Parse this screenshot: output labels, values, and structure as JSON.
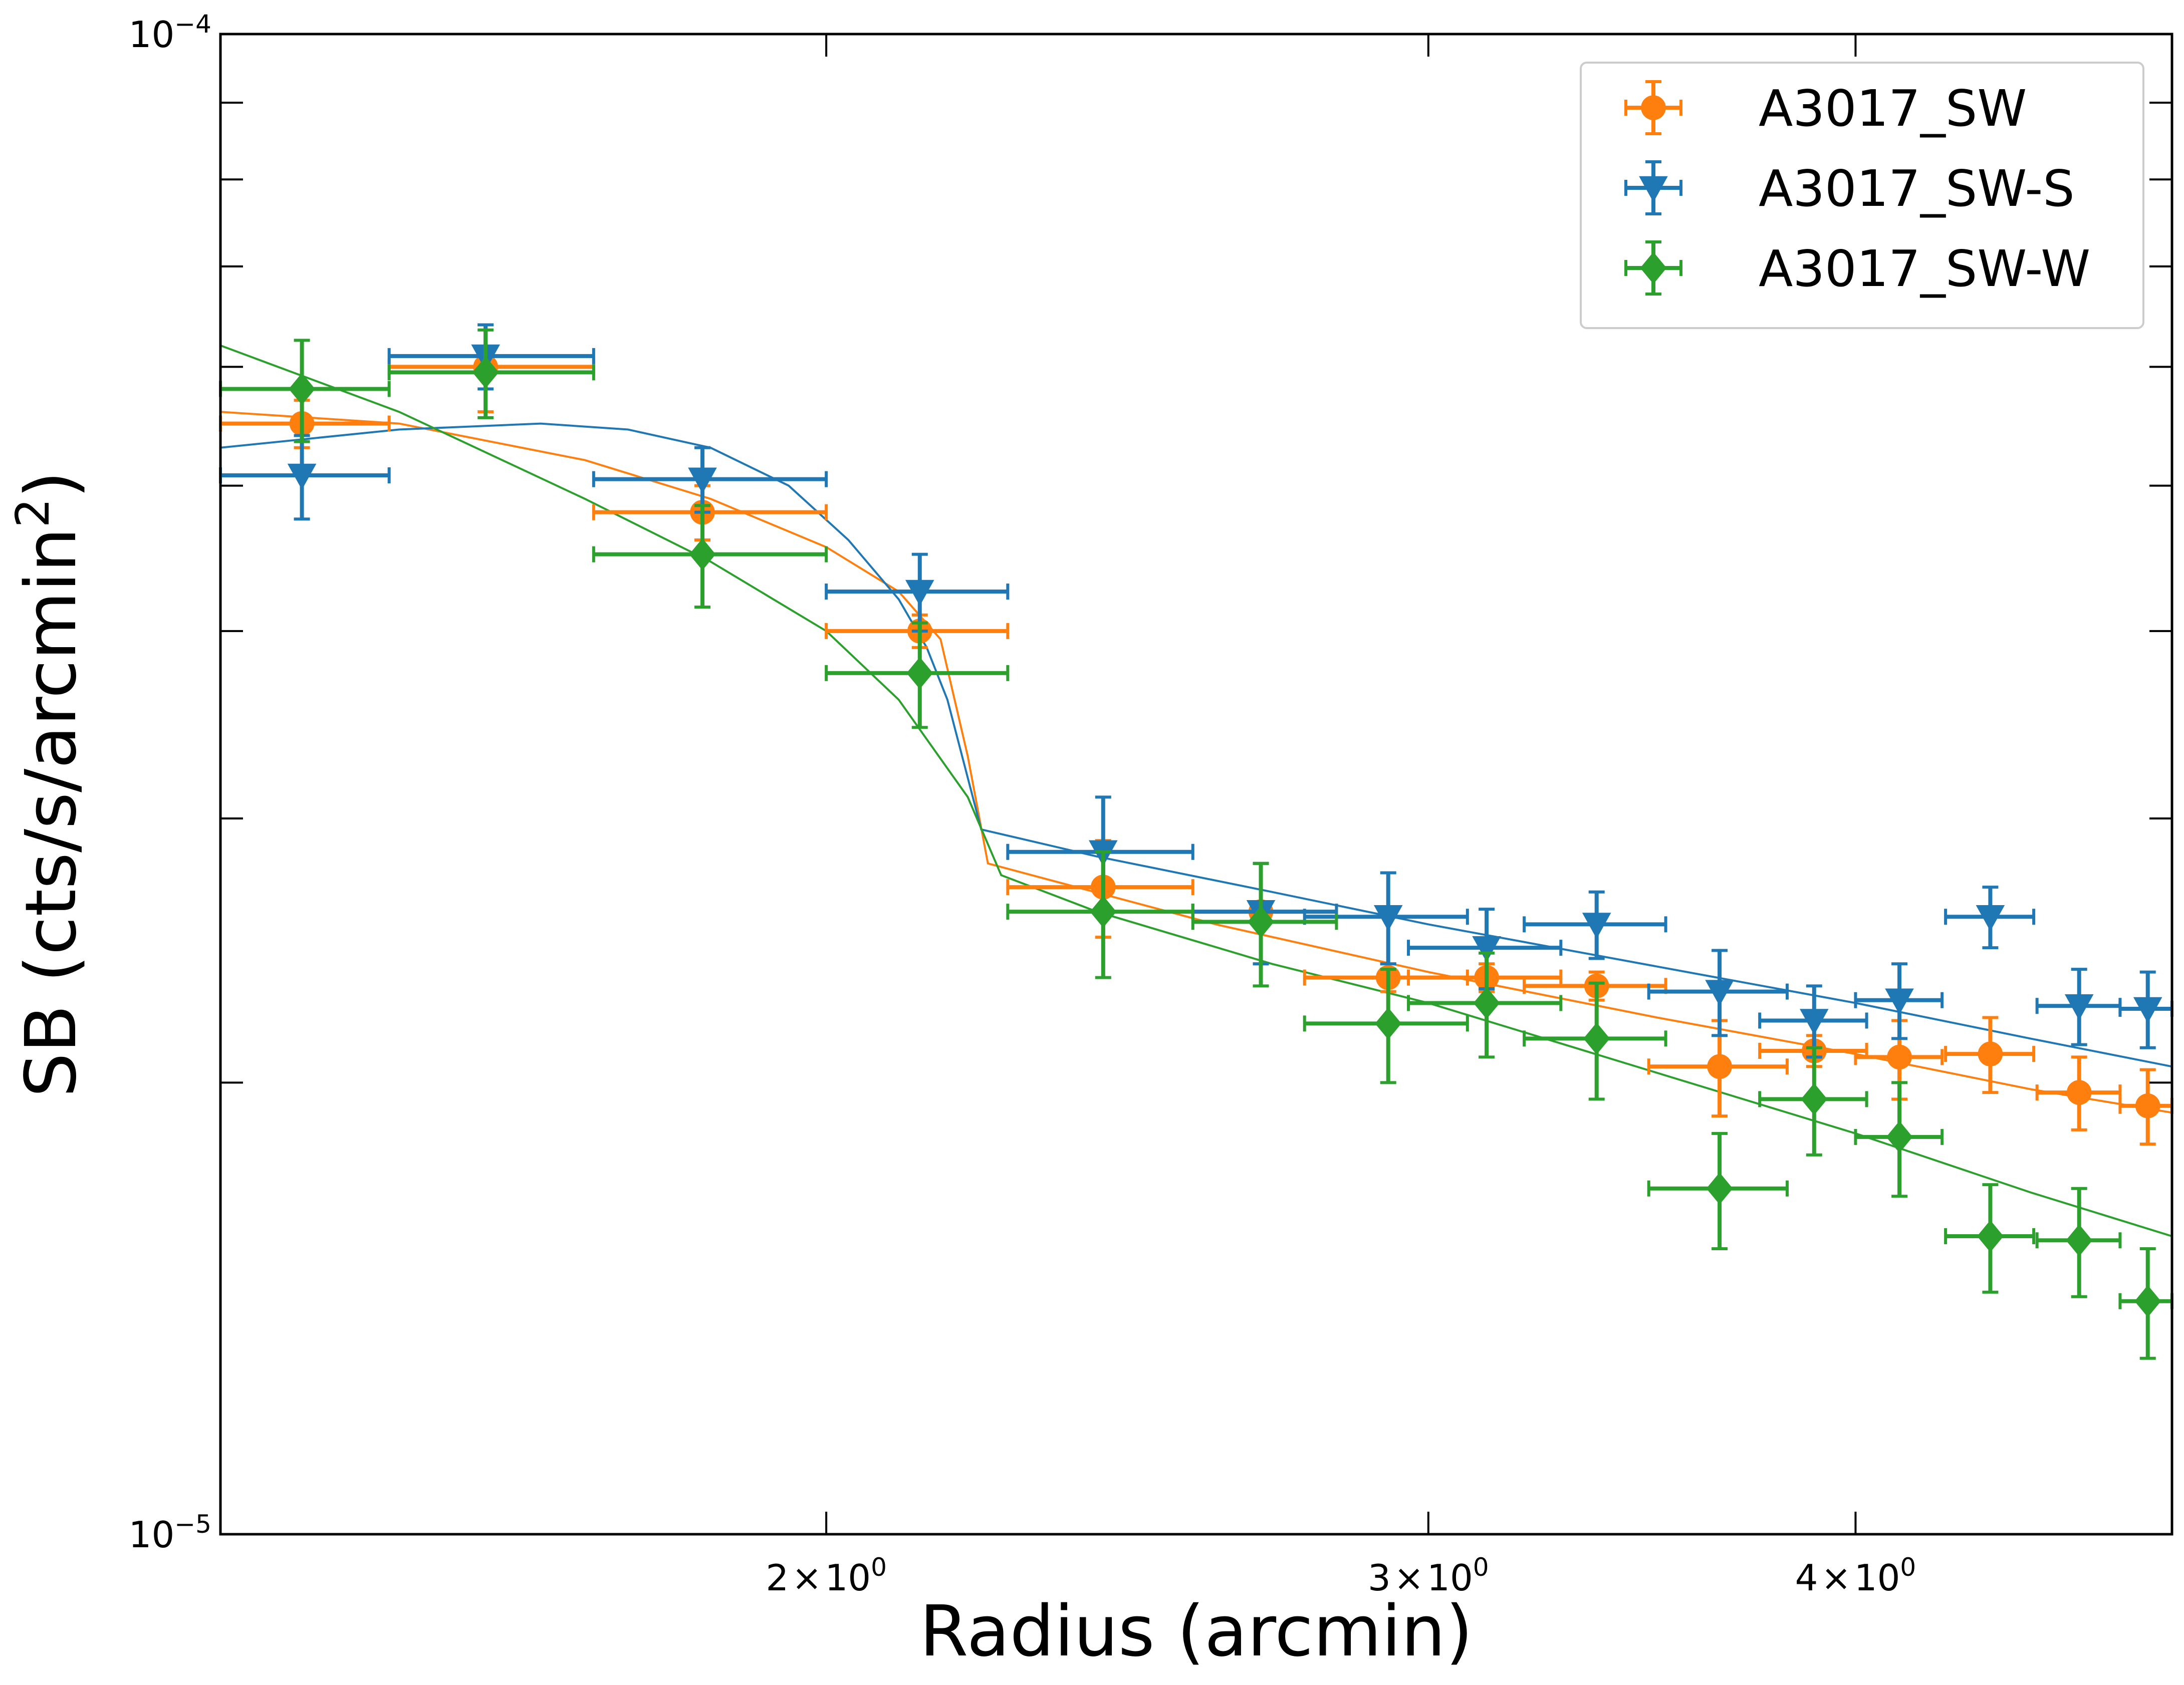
{
  "chart_data": {
    "type": "scatter",
    "title": "",
    "xlabel": "Radius (arcmin)",
    "ylabel_main": "SB (cts/s/arcmin",
    "ylabel_sup": "2",
    "ylabel_close": ")",
    "xscale": "log",
    "yscale": "log",
    "xlim": [
      1.33,
      4.95
    ],
    "ylim": [
      1e-05,
      0.0001
    ],
    "x_ticks": [
      {
        "value": 2,
        "mant": "2",
        "sym": "×",
        "base": "10",
        "exp": "0"
      },
      {
        "value": 3,
        "mant": "3",
        "sym": "×",
        "base": "10",
        "exp": "0"
      },
      {
        "value": 4,
        "mant": "4",
        "sym": "×",
        "base": "10",
        "exp": "0"
      }
    ],
    "y_ticks": [
      {
        "value": 0.0001,
        "base": "10",
        "exp": "−4"
      },
      {
        "value": 1e-05,
        "base": "10",
        "exp": "−5"
      }
    ],
    "legend_position": "top-right",
    "series": [
      {
        "name": "A3017_SW",
        "color": "#ff7f0e",
        "marker": "circle",
        "points": [
          {
            "x": 1.405,
            "xerr": [
              1.33,
              1.49
            ],
            "y": 5.5e-05,
            "yerr": [
              5.3e-05,
              5.7e-05
            ]
          },
          {
            "x": 1.59,
            "xerr": [
              1.49,
              1.71
            ],
            "y": 6e-05,
            "yerr": [
              5.6e-05,
              6.4e-05
            ]
          },
          {
            "x": 1.84,
            "xerr": [
              1.71,
              2.0
            ],
            "y": 4.8e-05,
            "yerr": [
              4.6e-05,
              5e-05
            ]
          },
          {
            "x": 2.13,
            "xerr": [
              2.0,
              2.26
            ],
            "y": 4e-05,
            "yerr": [
              3.9e-05,
              4.1e-05
            ]
          },
          {
            "x": 2.41,
            "xerr": [
              2.26,
              2.56
            ],
            "y": 2.7e-05,
            "yerr": [
              2.5e-05,
              2.9e-05
            ]
          },
          {
            "x": 2.68,
            "xerr": [
              2.56,
              2.82
            ],
            "y": 2.6e-05,
            "yerr": [
              2.4e-05,
              2.8e-05
            ]
          },
          {
            "x": 2.92,
            "xerr": [
              2.76,
              3.08
            ],
            "y": 2.35e-05,
            "yerr": [
              2.3e-05,
              2.4e-05
            ]
          },
          {
            "x": 3.12,
            "xerr": [
              2.96,
              3.28
            ],
            "y": 2.35e-05,
            "yerr": [
              2.3e-05,
              2.4e-05
            ]
          },
          {
            "x": 3.36,
            "xerr": [
              3.2,
              3.52
            ],
            "y": 2.32e-05,
            "yerr": [
              2.27e-05,
              2.37e-05
            ]
          },
          {
            "x": 3.65,
            "xerr": [
              3.48,
              3.82
            ],
            "y": 2.05e-05,
            "yerr": [
              1.9e-05,
              2.2e-05
            ]
          },
          {
            "x": 3.89,
            "xerr": [
              3.75,
              4.03
            ],
            "y": 2.1e-05,
            "yerr": [
              2.05e-05,
              2.15e-05
            ]
          },
          {
            "x": 4.12,
            "xerr": [
              4.0,
              4.24
            ],
            "y": 2.08e-05,
            "yerr": [
              1.95e-05,
              2.2e-05
            ]
          },
          {
            "x": 4.38,
            "xerr": [
              4.25,
              4.51
            ],
            "y": 2.09e-05,
            "yerr": [
              1.97e-05,
              2.21e-05
            ]
          },
          {
            "x": 4.65,
            "xerr": [
              4.52,
              4.78
            ],
            "y": 1.97e-05,
            "yerr": [
              1.86e-05,
              2.08e-05
            ]
          },
          {
            "x": 4.87,
            "xerr": [
              4.78,
              4.95
            ],
            "y": 1.93e-05,
            "yerr": [
              1.82e-05,
              2.04e-05
            ]
          }
        ],
        "model": {
          "x": [
            1.33,
            1.5,
            1.7,
            1.85,
            2.0,
            2.1,
            2.16,
            2.2,
            2.23,
            2.6,
            3.0,
            3.5,
            4.0,
            4.5,
            4.95
          ],
          "y": [
            5.6e-05,
            5.5e-05,
            5.2e-05,
            4.9e-05,
            4.55e-05,
            4.25e-05,
            3.95e-05,
            3.3e-05,
            2.8e-05,
            2.55e-05,
            2.37e-05,
            2.21e-05,
            2.09e-05,
            1.98e-05,
            1.91e-05
          ]
        }
      },
      {
        "name": "A3017_SW-S",
        "color": "#1f77b4",
        "marker": "triangle-down",
        "points": [
          {
            "x": 1.405,
            "xerr": [
              1.33,
              1.49
            ],
            "y": 5.08e-05,
            "yerr": [
              4.75e-05,
              5.4e-05
            ]
          },
          {
            "x": 1.59,
            "xerr": [
              1.49,
              1.71
            ],
            "y": 6.1e-05,
            "yerr": [
              5.8e-05,
              6.4e-05
            ]
          },
          {
            "x": 1.84,
            "xerr": [
              1.71,
              2.0
            ],
            "y": 5.05e-05,
            "yerr": [
              4.8e-05,
              5.3e-05
            ]
          },
          {
            "x": 2.13,
            "xerr": [
              2.0,
              2.26
            ],
            "y": 4.25e-05,
            "yerr": [
              4e-05,
              4.5e-05
            ]
          },
          {
            "x": 2.41,
            "xerr": [
              2.26,
              2.56
            ],
            "y": 2.85e-05,
            "yerr": [
              2.6e-05,
              3.1e-05
            ]
          },
          {
            "x": 2.68,
            "xerr": [
              2.56,
              2.82
            ],
            "y": 2.6e-05,
            "yerr": [
              2.4e-05,
              2.8e-05
            ]
          },
          {
            "x": 2.92,
            "xerr": [
              2.76,
              3.08
            ],
            "y": 2.58e-05,
            "yerr": [
              2.4e-05,
              2.76e-05
            ]
          },
          {
            "x": 3.12,
            "xerr": [
              2.96,
              3.28
            ],
            "y": 2.46e-05,
            "yerr": [
              2.31e-05,
              2.61e-05
            ]
          },
          {
            "x": 3.36,
            "xerr": [
              3.2,
              3.52
            ],
            "y": 2.55e-05,
            "yerr": [
              2.42e-05,
              2.68e-05
            ]
          },
          {
            "x": 3.65,
            "xerr": [
              3.48,
              3.82
            ],
            "y": 2.3e-05,
            "yerr": [
              2.15e-05,
              2.45e-05
            ]
          },
          {
            "x": 3.89,
            "xerr": [
              3.75,
              4.03
            ],
            "y": 2.2e-05,
            "yerr": [
              2.08e-05,
              2.32e-05
            ]
          },
          {
            "x": 4.12,
            "xerr": [
              4.0,
              4.24
            ],
            "y": 2.27e-05,
            "yerr": [
              2.14e-05,
              2.4e-05
            ]
          },
          {
            "x": 4.38,
            "xerr": [
              4.25,
              4.51
            ],
            "y": 2.58e-05,
            "yerr": [
              2.46e-05,
              2.7e-05
            ]
          },
          {
            "x": 4.65,
            "xerr": [
              4.52,
              4.78
            ],
            "y": 2.25e-05,
            "yerr": [
              2.12e-05,
              2.38e-05
            ]
          },
          {
            "x": 4.87,
            "xerr": [
              4.78,
              4.95
            ],
            "y": 2.24e-05,
            "yerr": [
              2.11e-05,
              2.37e-05
            ]
          }
        ],
        "model": {
          "x": [
            1.33,
            1.5,
            1.65,
            1.75,
            1.85,
            1.95,
            2.03,
            2.1,
            2.14,
            2.17,
            2.22,
            2.4,
            2.7,
            3.0,
            3.5,
            4.0,
            4.5,
            4.95
          ],
          "y": [
            5.3e-05,
            5.45e-05,
            5.5e-05,
            5.45e-05,
            5.3e-05,
            5e-05,
            4.6e-05,
            4.2e-05,
            3.9e-05,
            3.6e-05,
            2.95e-05,
            2.83e-05,
            2.68e-05,
            2.55e-05,
            2.39e-05,
            2.26e-05,
            2.14e-05,
            2.05e-05
          ]
        }
      },
      {
        "name": "A3017_SW-W",
        "color": "#2ca02c",
        "marker": "diamond",
        "points": [
          {
            "x": 1.405,
            "xerr": [
              1.33,
              1.49
            ],
            "y": 5.8e-05,
            "yerr": [
              5.35e-05,
              6.25e-05
            ]
          },
          {
            "x": 1.59,
            "xerr": [
              1.49,
              1.71
            ],
            "y": 5.95e-05,
            "yerr": [
              5.55e-05,
              6.35e-05
            ]
          },
          {
            "x": 1.84,
            "xerr": [
              1.71,
              2.0
            ],
            "y": 4.5e-05,
            "yerr": [
              4.15e-05,
              4.85e-05
            ]
          },
          {
            "x": 2.13,
            "xerr": [
              2.0,
              2.26
            ],
            "y": 3.75e-05,
            "yerr": [
              3.45e-05,
              4.05e-05
            ]
          },
          {
            "x": 2.41,
            "xerr": [
              2.26,
              2.56
            ],
            "y": 2.6e-05,
            "yerr": [
              2.35e-05,
              2.85e-05
            ]
          },
          {
            "x": 2.68,
            "xerr": [
              2.56,
              2.82
            ],
            "y": 2.56e-05,
            "yerr": [
              2.32e-05,
              2.8e-05
            ]
          },
          {
            "x": 2.92,
            "xerr": [
              2.76,
              3.08
            ],
            "y": 2.19e-05,
            "yerr": [
              2e-05,
              2.38e-05
            ]
          },
          {
            "x": 3.12,
            "xerr": [
              2.96,
              3.28
            ],
            "y": 2.26e-05,
            "yerr": [
              2.08e-05,
              2.44e-05
            ]
          },
          {
            "x": 3.36,
            "xerr": [
              3.2,
              3.52
            ],
            "y": 2.14e-05,
            "yerr": [
              1.95e-05,
              2.33e-05
            ]
          },
          {
            "x": 3.65,
            "xerr": [
              3.48,
              3.82
            ],
            "y": 1.7e-05,
            "yerr": [
              1.55e-05,
              1.85e-05
            ]
          },
          {
            "x": 3.89,
            "xerr": [
              3.75,
              4.03
            ],
            "y": 1.95e-05,
            "yerr": [
              1.79e-05,
              2.11e-05
            ]
          },
          {
            "x": 4.12,
            "xerr": [
              4.0,
              4.24
            ],
            "y": 1.84e-05,
            "yerr": [
              1.68e-05,
              2e-05
            ]
          },
          {
            "x": 4.38,
            "xerr": [
              4.25,
              4.51
            ],
            "y": 1.58e-05,
            "yerr": [
              1.45e-05,
              1.71e-05
            ]
          },
          {
            "x": 4.65,
            "xerr": [
              4.52,
              4.78
            ],
            "y": 1.57e-05,
            "yerr": [
              1.44e-05,
              1.7e-05
            ]
          },
          {
            "x": 4.87,
            "xerr": [
              4.78,
              4.95
            ],
            "y": 1.43e-05,
            "yerr": [
              1.31e-05,
              1.55e-05
            ]
          }
        ],
        "model": {
          "x": [
            1.33,
            1.5,
            1.7,
            1.85,
            2.0,
            2.1,
            2.2,
            2.25,
            2.4,
            2.7,
            3.0,
            3.5,
            4.0,
            4.5,
            4.95
          ],
          "y": [
            6.2e-05,
            5.6e-05,
            4.9e-05,
            4.45e-05,
            4e-05,
            3.6e-05,
            3.1e-05,
            2.75e-05,
            2.6e-05,
            2.4e-05,
            2.26e-05,
            2.03e-05,
            1.85e-05,
            1.69e-05,
            1.58e-05
          ]
        }
      }
    ]
  }
}
